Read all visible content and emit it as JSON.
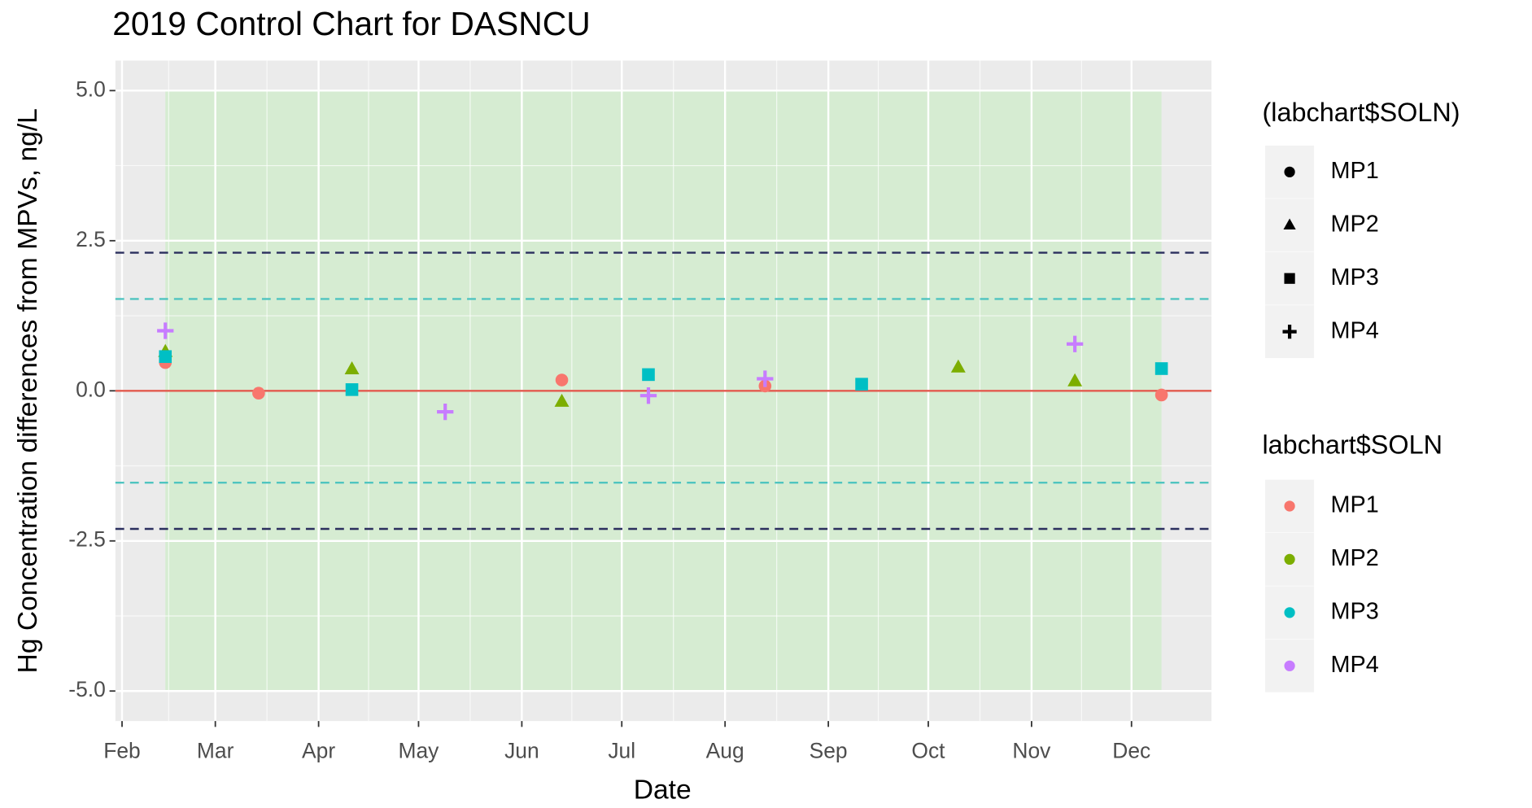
{
  "chart_data": {
    "type": "scatter",
    "title": "2019 Control Chart for DASNCU",
    "x_label": "Date",
    "y_label": "Hg Concentration differences from MPVs, ng/L",
    "xlim": [
      30,
      359
    ],
    "ylim": [
      -5.5,
      5.5
    ],
    "xticks": [
      {
        "value": 32,
        "label": "Feb"
      },
      {
        "value": 60,
        "label": "Mar"
      },
      {
        "value": 91,
        "label": "Apr"
      },
      {
        "value": 121,
        "label": "May"
      },
      {
        "value": 152,
        "label": "Jun"
      },
      {
        "value": 182,
        "label": "Jul"
      },
      {
        "value": 213,
        "label": "Aug"
      },
      {
        "value": 244,
        "label": "Sep"
      },
      {
        "value": 274,
        "label": "Oct"
      },
      {
        "value": 305,
        "label": "Nov"
      },
      {
        "value": 335,
        "label": "Dec"
      }
    ],
    "yticks": [
      {
        "value": -5,
        "label": "-5.0"
      },
      {
        "value": -2.5,
        "label": "-2.5"
      },
      {
        "value": 0,
        "label": "0.0"
      },
      {
        "value": 2.5,
        "label": "2.5"
      },
      {
        "value": 5,
        "label": "5.0"
      }
    ],
    "grid": true,
    "band": {
      "x": [
        45,
        344
      ],
      "y": [
        -5,
        5
      ],
      "color": "#d6ecd2"
    },
    "hlines": [
      {
        "value": 0,
        "color": "#e2594d",
        "dash": false
      },
      {
        "value": 2.3,
        "color": "#2b2f5e",
        "dash": true
      },
      {
        "value": -2.3,
        "color": "#2b2f5e",
        "dash": true
      },
      {
        "value": 1.53,
        "color": "#4fc4c0",
        "dash": true
      },
      {
        "value": -1.53,
        "color": "#4fc4c0",
        "dash": true
      }
    ],
    "shape_legend_title": "(labchart$SOLN)",
    "color_legend_title": "labchart$SOLN",
    "series": [
      {
        "name": "MP1",
        "color": "#F8766D",
        "shape": "circle",
        "x": [
          45,
          73,
          164,
          225,
          344
        ],
        "values": [
          0.47,
          -0.04,
          0.18,
          0.08,
          -0.07
        ]
      },
      {
        "name": "MP2",
        "color": "#7CAE00",
        "shape": "triangle",
        "x": [
          45,
          101,
          164,
          283,
          318
        ],
        "values": [
          0.65,
          0.36,
          -0.18,
          0.39,
          0.16
        ]
      },
      {
        "name": "MP3",
        "color": "#00BFC4",
        "shape": "square",
        "x": [
          45,
          101,
          190,
          254,
          344
        ],
        "values": [
          0.57,
          0.02,
          0.27,
          0.11,
          0.37
        ]
      },
      {
        "name": "MP4",
        "color": "#C77CFF",
        "shape": "plus",
        "x": [
          45,
          129,
          190,
          225,
          318
        ],
        "values": [
          1.0,
          -0.35,
          -0.08,
          0.2,
          0.78
        ]
      }
    ]
  }
}
